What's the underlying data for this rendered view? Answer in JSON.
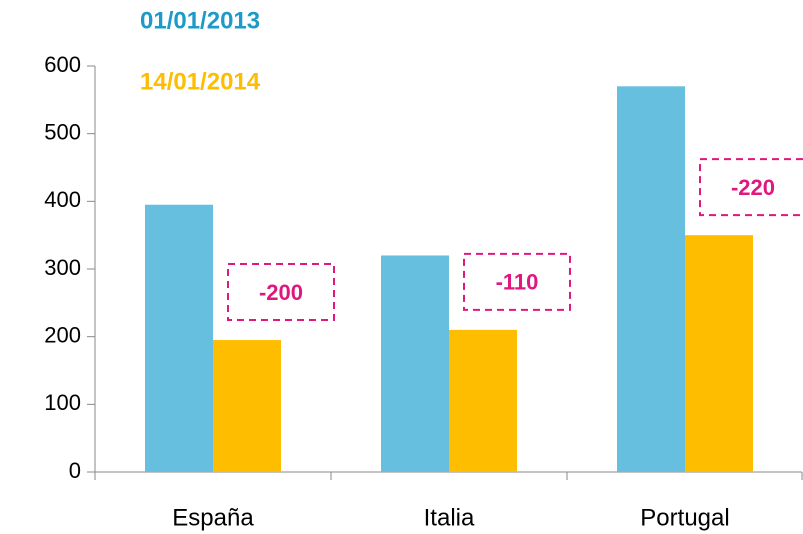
{
  "chart_data": {
    "type": "bar",
    "categories": [
      "España",
      "Italia",
      "Portugal"
    ],
    "series": [
      {
        "name": "01/01/2013",
        "color": "#67bfdf",
        "legend_color": "#1e9ac8",
        "values": [
          395,
          320,
          570
        ]
      },
      {
        "name": "14/01/2014",
        "color": "#ffbd00",
        "legend_color": "#ffbd00",
        "values": [
          195,
          210,
          350
        ]
      }
    ],
    "annotations": [
      "-200",
      "-110",
      "-220"
    ],
    "annotation_color": "#e0177f",
    "ylim": [
      0,
      600
    ],
    "yticks": [
      0,
      100,
      200,
      300,
      400,
      500,
      600
    ]
  }
}
